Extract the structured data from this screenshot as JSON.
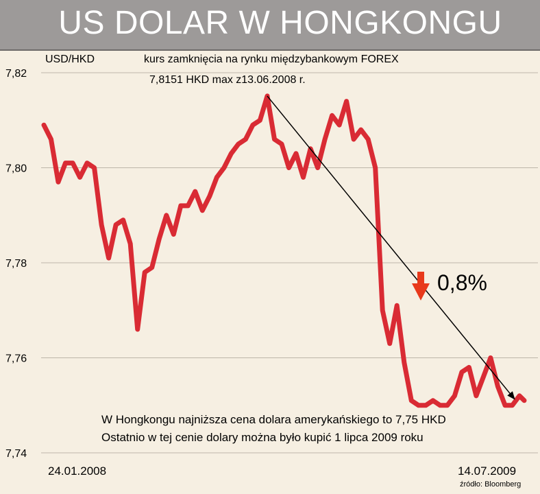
{
  "banner": {
    "title": "US DOLAR W HONGKONGU"
  },
  "chart_data": {
    "type": "line",
    "title": "US DOLAR W HONGKONGU",
    "pair_label": "USD/HKD",
    "subtitle": "kurs zamknięcia na rynku międzybankowym FOREX",
    "max_annotation": "7,8151 HKD max z13.06.2008 r.",
    "change_label": "0,8%",
    "note_line1": "W Hongkongu najniższa cena dolara amerykańskiego to 7,75 HKD",
    "note_line2": "Ostatnio w tej cenie dolary można było kupić 1 lipca 2009 roku",
    "x_start_label": "24.01.2008",
    "x_end_label": "14.07.2009",
    "source": "źródło: Bloomberg",
    "y_ticks": [
      "7,74",
      "7,76",
      "7,78",
      "7,80",
      "7,82"
    ],
    "ylim": [
      7.74,
      7.82
    ],
    "grid": true,
    "series": [
      {
        "color": "#d92b34",
        "x": [
          0,
          1.5,
          3,
          4.5,
          6,
          7.5,
          9,
          10.5,
          12,
          13.5,
          15,
          16.5,
          18,
          19.5,
          21,
          22.5,
          24,
          25.5,
          27,
          28.5,
          30,
          31.5,
          33,
          34.5,
          36,
          37.5,
          39,
          40.5,
          42,
          43.5,
          45,
          46.5,
          48,
          49.5,
          51,
          52.5,
          54,
          55.5,
          57,
          58.5,
          60,
          61.5,
          63,
          64.5,
          66,
          67.5,
          69,
          70.5,
          72,
          73.5,
          75,
          76.5,
          78,
          79.5,
          81,
          82.5,
          84,
          85.5,
          87,
          88.5,
          90,
          91.5,
          93,
          94.5,
          96,
          97.5,
          99,
          100
        ],
        "values": [
          7.809,
          7.806,
          7.797,
          7.801,
          7.801,
          7.798,
          7.801,
          7.8,
          7.788,
          7.781,
          7.788,
          7.789,
          7.784,
          7.766,
          7.778,
          7.779,
          7.785,
          7.79,
          7.786,
          7.792,
          7.792,
          7.795,
          7.791,
          7.794,
          7.798,
          7.8,
          7.803,
          7.805,
          7.806,
          7.809,
          7.81,
          7.8151,
          7.806,
          7.805,
          7.8,
          7.803,
          7.798,
          7.804,
          7.8,
          7.806,
          7.811,
          7.809,
          7.814,
          7.806,
          7.808,
          7.806,
          7.8,
          7.77,
          7.763,
          7.771,
          7.759,
          7.751,
          7.75,
          7.75,
          7.751,
          7.75,
          7.75,
          7.752,
          7.757,
          7.758,
          7.752,
          7.756,
          7.76,
          7.754,
          7.75,
          7.75,
          7.752,
          7.751
        ]
      }
    ]
  }
}
